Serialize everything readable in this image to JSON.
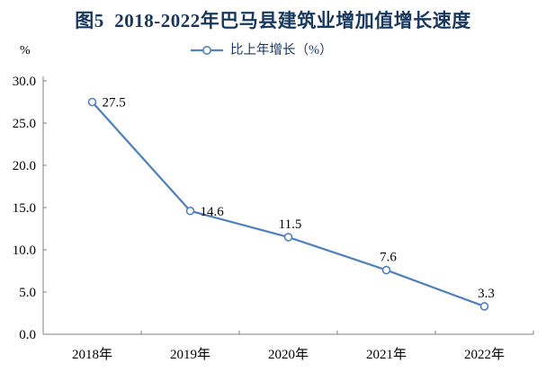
{
  "title": "图5  2018-2022年巴马县建筑业增加值增长速度",
  "y_axis_unit": "%",
  "legend": {
    "label": "比上年增长（%）"
  },
  "chart_data": {
    "type": "line",
    "title": "图5  2018-2022年巴马县建筑业增加值增长速度",
    "categories": [
      "2018年",
      "2019年",
      "2020年",
      "2021年",
      "2022年"
    ],
    "series": [
      {
        "name": "比上年增长（%）",
        "values": [
          27.5,
          14.6,
          11.5,
          7.6,
          3.3
        ]
      }
    ],
    "xlabel": "",
    "ylabel": "%",
    "ylim": [
      0,
      30
    ],
    "ytick_step": 5,
    "ytick_decimals": 1,
    "ytick_labels": [
      "0.0",
      "5.0",
      "10.0",
      "15.0",
      "20.0",
      "25.0",
      "30.0"
    ],
    "grid": false,
    "legend_position": "top-center",
    "point_label_positions": [
      "right",
      "right",
      "above",
      "above",
      "above"
    ],
    "colors": {
      "line": "#4F81BD",
      "marker_fill": "#FFFFFF",
      "axis": "#808080",
      "tick_label": "#000000",
      "data_label": "#000000",
      "title": "#17375E",
      "legend_text": "#17375E"
    }
  }
}
